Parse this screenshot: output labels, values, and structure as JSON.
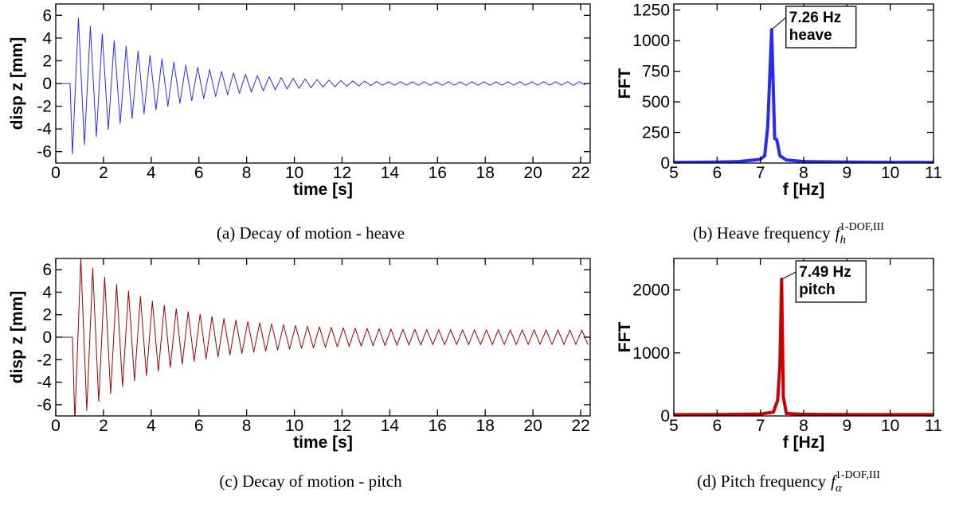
{
  "chart_data": [
    {
      "type": "line",
      "color": "#2a2aff",
      "line_width": 1,
      "x_label": "time [s]",
      "y_label": "disp z [mm]",
      "caption": {
        "text": "(a) Decay of motion - heave"
      },
      "xlim": [
        0,
        22.4
      ],
      "xticks": [
        0,
        2,
        4,
        6,
        8,
        10,
        12,
        14,
        16,
        18,
        20,
        22
      ],
      "ylim": [
        -7,
        7
      ],
      "yticks": [
        -6,
        -4,
        -2,
        0,
        2,
        4,
        6
      ],
      "x": [
        0,
        0.6,
        0.7,
        0.95,
        1.2,
        1.45,
        1.7,
        1.95,
        2.2,
        2.45,
        2.7,
        2.95,
        3.2,
        3.45,
        3.7,
        3.95,
        4.2,
        4.45,
        4.7,
        4.95,
        5.2,
        5.45,
        5.7,
        5.95,
        6.2,
        6.45,
        6.7,
        6.95,
        7.2,
        7.45,
        7.7,
        7.95,
        8.2,
        8.45,
        8.7,
        8.95,
        9.2,
        9.45,
        9.7,
        9.95,
        10.2,
        10.45,
        10.7,
        10.95,
        11.2,
        11.45,
        11.7,
        11.95,
        12.2,
        12.45,
        12.7,
        12.95,
        13.2,
        13.45,
        13.7,
        13.95,
        14.2,
        14.45,
        14.7,
        14.95,
        15.2,
        15.45,
        15.7,
        15.95,
        16.2,
        16.45,
        16.7,
        16.95,
        17.2,
        17.45,
        17.7,
        17.95,
        18.2,
        18.45,
        18.7,
        18.95,
        19.2,
        19.45,
        19.7,
        19.95,
        20.2,
        20.45,
        20.7,
        20.95,
        21.2,
        21.45,
        21.7,
        21.95,
        22.2
      ],
      "values": [
        0,
        0,
        -6.2,
        5.78,
        -5.39,
        5.02,
        -4.68,
        4.36,
        -4.07,
        3.79,
        -3.53,
        3.29,
        -3.07,
        2.86,
        -2.67,
        2.49,
        -2.32,
        2.16,
        -2.01,
        1.88,
        -1.75,
        1.63,
        -1.52,
        1.42,
        -1.32,
        1.23,
        -1.15,
        1.07,
        -1.0,
        0.93,
        -0.87,
        0.81,
        -0.75,
        0.7,
        -0.65,
        0.61,
        -0.57,
        0.53,
        -0.49,
        0.46,
        -0.43,
        0.4,
        -0.37,
        0.35,
        -0.32,
        0.3,
        -0.28,
        0.26,
        -0.24,
        0.23,
        -0.21,
        0.2,
        -0.18,
        0.17,
        -0.15,
        0.15,
        -0.15,
        0.15,
        -0.15,
        0.15,
        -0.15,
        0.15,
        -0.15,
        0.15,
        -0.15,
        0.15,
        -0.15,
        0.15,
        -0.15,
        0.15,
        -0.15,
        0.15,
        -0.15,
        0.15,
        -0.15,
        0.15,
        -0.15,
        0.15,
        -0.15,
        0.15,
        -0.15,
        0.15,
        -0.15,
        0.15,
        -0.15,
        0.15,
        -0.15,
        0.15,
        -0.15
      ]
    },
    {
      "type": "line",
      "color": "#2b2bf0",
      "line_width": 4,
      "x_label": "f [Hz]",
      "y_label": "FFT",
      "caption": {
        "text": "(b) Heave frequency",
        "symbol": "f",
        "sub": "h",
        "sup": "1-DOF,III"
      },
      "annotation": [
        "7.26 Hz",
        "heave"
      ],
      "xlim": [
        5,
        11
      ],
      "xticks": [
        5,
        6,
        7,
        8,
        9,
        10,
        11
      ],
      "ylim": [
        0,
        1300
      ],
      "yticks": [
        0,
        250,
        500,
        750,
        1000,
        1250
      ],
      "x": [
        5,
        6,
        6.5,
        7,
        7.1,
        7.17,
        7.26,
        7.33,
        7.38,
        7.45,
        7.6,
        8,
        9,
        10,
        11
      ],
      "values": [
        5,
        8,
        12,
        30,
        60,
        300,
        1090,
        200,
        190,
        60,
        25,
        12,
        8,
        6,
        5
      ]
    },
    {
      "type": "line",
      "color": "#a00000",
      "line_width": 1,
      "x_label": "time [s]",
      "y_label": "disp z [mm]",
      "caption": {
        "text": "(c) Decay of motion - pitch"
      },
      "xlim": [
        0,
        22.4
      ],
      "xticks": [
        0,
        2,
        4,
        6,
        8,
        10,
        12,
        14,
        16,
        18,
        20,
        22
      ],
      "ylim": [
        -7,
        7
      ],
      "yticks": [
        -6,
        -4,
        -2,
        0,
        2,
        4,
        6
      ],
      "x": [
        0,
        0.7,
        0.8,
        1.05,
        1.3,
        1.55,
        1.8,
        2.05,
        2.3,
        2.55,
        2.8,
        3.05,
        3.3,
        3.55,
        3.8,
        4.05,
        4.3,
        4.55,
        4.8,
        5.05,
        5.3,
        5.55,
        5.8,
        6.05,
        6.3,
        6.55,
        6.8,
        7.05,
        7.3,
        7.55,
        7.8,
        8.05,
        8.3,
        8.55,
        8.8,
        9.05,
        9.3,
        9.55,
        9.8,
        10.05,
        10.3,
        10.55,
        10.8,
        11.05,
        11.3,
        11.55,
        11.8,
        12.05,
        12.3,
        12.55,
        12.8,
        13.05,
        13.3,
        13.55,
        13.8,
        14.05,
        14.3,
        14.55,
        14.8,
        15.05,
        15.3,
        15.55,
        15.8,
        16.05,
        16.3,
        16.55,
        16.8,
        17.05,
        17.3,
        17.55,
        17.8,
        18.05,
        18.3,
        18.55,
        18.8,
        19.05,
        19.3,
        19.55,
        19.8,
        20.05,
        20.3,
        20.55,
        20.8,
        21.05,
        21.3,
        21.55,
        21.8,
        22.05,
        22.3
      ],
      "values": [
        0,
        0,
        -7.5,
        7.0,
        -6.54,
        6.12,
        -5.72,
        5.35,
        -5.01,
        4.69,
        -4.4,
        4.12,
        -3.87,
        3.63,
        -3.42,
        3.21,
        -3.03,
        2.85,
        -2.69,
        2.54,
        -2.4,
        2.27,
        -2.15,
        2.04,
        -1.93,
        1.84,
        -1.75,
        1.67,
        -1.59,
        1.52,
        -1.45,
        1.39,
        -1.33,
        1.28,
        -1.23,
        1.18,
        -1.14,
        1.1,
        -1.07,
        1.03,
        -1.0,
        0.97,
        -0.95,
        0.92,
        -0.9,
        0.88,
        -0.86,
        0.84,
        -0.82,
        0.8,
        -0.79,
        0.78,
        -0.76,
        0.75,
        -0.74,
        0.73,
        -0.72,
        0.71,
        -0.7,
        0.7,
        -0.69,
        0.68,
        -0.67,
        0.67,
        -0.67,
        0.67,
        -0.67,
        0.67,
        -0.67,
        0.67,
        -0.67,
        0.66,
        -0.66,
        0.66,
        -0.66,
        0.66,
        -0.66,
        0.66,
        -0.66,
        0.66,
        -0.65,
        0.65,
        -0.65,
        0.65,
        -0.65,
        0.65,
        -0.65,
        0.65,
        -0.65
      ]
    },
    {
      "type": "line",
      "color": "#cc0000",
      "line_width": 4,
      "x_label": "f [Hz]",
      "y_label": "FFT",
      "caption": {
        "text": "(d) Pitch frequency",
        "symbol": "f",
        "sub": "α",
        "sup": "1-DOF,III"
      },
      "annotation": [
        "7.49 Hz",
        "pitch"
      ],
      "xlim": [
        5,
        11
      ],
      "xticks": [
        5,
        6,
        7,
        8,
        9,
        10,
        11
      ],
      "ylim": [
        0,
        2500
      ],
      "yticks": [
        0,
        1000,
        2000
      ],
      "x": [
        5,
        6,
        7,
        7.3,
        7.4,
        7.45,
        7.49,
        7.53,
        7.6,
        8,
        9,
        11
      ],
      "values": [
        20,
        22,
        30,
        60,
        250,
        800,
        2170,
        300,
        40,
        25,
        22,
        20
      ]
    }
  ]
}
